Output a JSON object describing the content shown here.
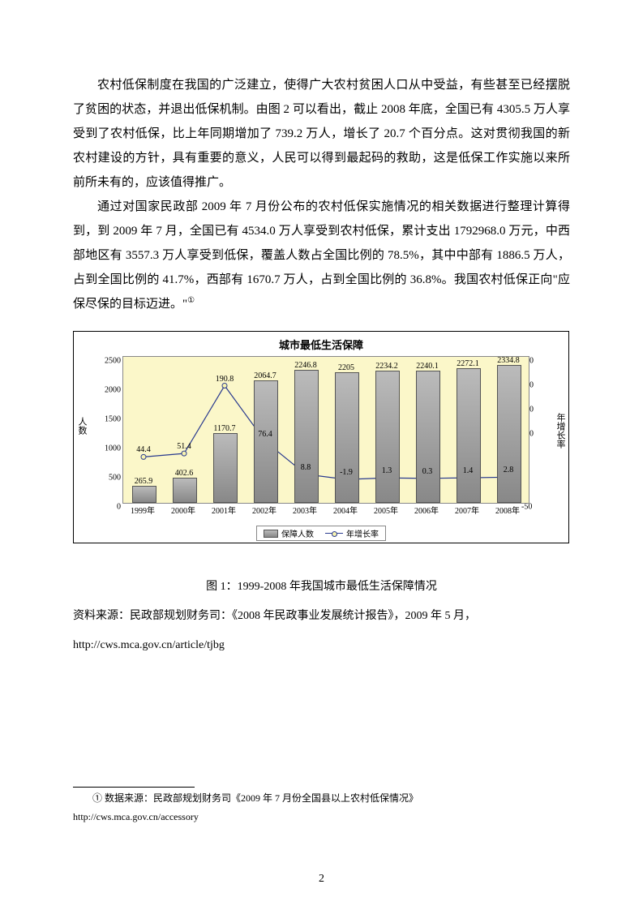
{
  "paragraph1": "农村低保制度在我国的广泛建立，使得广大农村贫困人口从中受益，有些甚至已经摆脱了贫困的状态，并退出低保机制。由图 2 可以看出，截止 2008 年底，全国已有 4305.5 万人享受到了农村低保，比上年同期增加了 739.2 万人，增长了 20.7 个百分点。这对贯彻我国的新农村建设的方针，具有重要的意义，人民可以得到最起码的救助，这是低保工作实施以来所前所未有的，应该值得推广。",
  "paragraph2_part1": "通过对国家民政部 2009 年 7 月份公布的农村低保实施情况的相关数据进行整理计算得到，到 2009 年 7 月，全国已有 4534.0 万人享受到农村低保，累计支出 1792968.0 万元，中西部地区有 3557.3 万人享受到低保，覆盖人数占全国比例的 78.5%，其中中部有 1886.5 万人，占到全国比例的 41.7%，西部有 1670.7 万人，占到全国比例的 36.8%。我国农村低保正向\"应保尽保的目标迈进。\"",
  "footnote_marker": "①",
  "chart": {
    "type": "bar+line",
    "title": "城市最低生活保障",
    "categories": [
      "1999年",
      "2000年",
      "2001年",
      "2002年",
      "2003年",
      "2004年",
      "2005年",
      "2006年",
      "2007年",
      "2008年"
    ],
    "bar_values": [
      265.9,
      402.6,
      1170.7,
      2064.7,
      2246.8,
      2205,
      2234.2,
      2240.1,
      2272.1,
      2334.8
    ],
    "line_values": [
      44.4,
      51.4,
      190.8,
      76.4,
      8.8,
      -1.9,
      1.3,
      0.3,
      1.4,
      2.8
    ],
    "left_ylim": [
      0,
      2500
    ],
    "left_ytick_step": 500,
    "right_ylim": [
      -50,
      250
    ],
    "right_ytick_step": 50,
    "left_label": "人数",
    "right_label": "年增长率",
    "bar_color_top": "#bbbbbb",
    "bar_color_bottom": "#888888",
    "bar_border": "#555555",
    "line_color": "#2a3b8f",
    "marker_fill": "#f7f3b0",
    "plot_bg": "#fbf7c9",
    "bar_width": 0.55,
    "legend_items": [
      "保障人数",
      "年增长率"
    ]
  },
  "caption": "图 1：1999-2008 年我国城市最低生活保障情况",
  "source_line1": "资料来源：民政部规划财务司：《2008 年民政事业发展统计报告》，2009 年 5 月，",
  "source_line2": "http://cws.mca.gov.cn/article/tjbg",
  "footnote_text": "① 数据来源：民政部规划财务司《2009 年 7 月份全国县以上农村低保情况》",
  "footnote_url": "http://cws.mca.gov.cn/accessory",
  "page_number": "2"
}
